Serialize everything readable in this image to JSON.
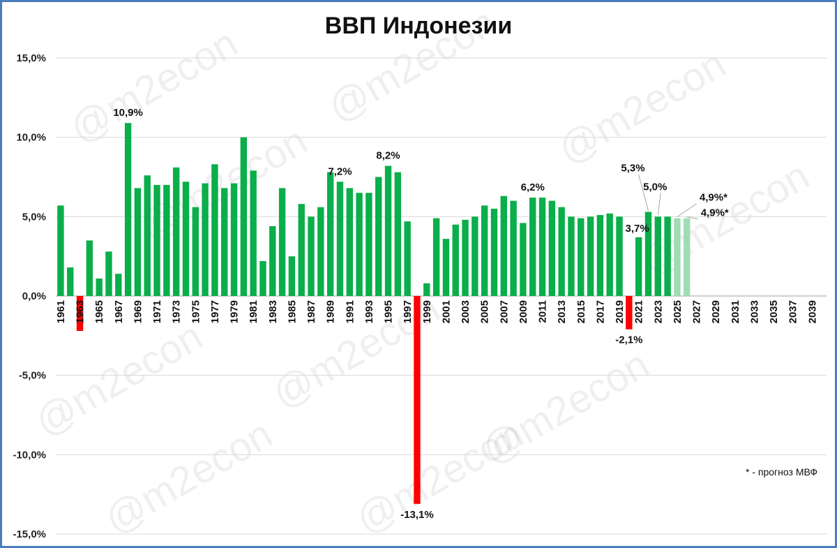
{
  "watermark": "@m2econ",
  "footnote": "* - прогноз МВФ",
  "colors": {
    "positive": "#0aae4a",
    "negative": "#ff0000",
    "forecast": "#9fdcb5",
    "grid": "#d9d9d9",
    "axis": "#bfbfbf"
  },
  "chart_data": {
    "type": "bar",
    "title": "ВВП Индонезии",
    "xlabel": "",
    "ylabel": "",
    "ylim": [
      -15,
      15
    ],
    "yticks": [
      "15,0%",
      "10,0%",
      "5,0%",
      "0,0%",
      "-5,0%",
      "-10,0%",
      "-15,0%"
    ],
    "ytick_values": [
      15,
      10,
      5,
      0,
      -5,
      -10,
      -15
    ],
    "grid": true,
    "x_start": 1961,
    "x_end": 2040,
    "xtick_labels": [
      "1961",
      "1963",
      "1965",
      "1967",
      "1969",
      "1971",
      "1973",
      "1975",
      "1977",
      "1979",
      "1981",
      "1983",
      "1985",
      "1987",
      "1989",
      "1991",
      "1993",
      "1995",
      "1997",
      "1999",
      "2001",
      "2003",
      "2005",
      "2007",
      "2009",
      "2011",
      "2013",
      "2015",
      "2017",
      "2019",
      "2021",
      "2023",
      "2025",
      "2027",
      "2029",
      "2031",
      "2033",
      "2035",
      "2037",
      "2039"
    ],
    "series": [
      {
        "years": [
          1961,
          1962,
          1963,
          1964,
          1965,
          1966,
          1967,
          1968,
          1969,
          1970,
          1971,
          1972,
          1973,
          1974,
          1975,
          1976,
          1977,
          1978,
          1979,
          1980,
          1981,
          1982,
          1983,
          1984,
          1985,
          1986,
          1987,
          1988,
          1989,
          1990,
          1991,
          1992,
          1993,
          1994,
          1995,
          1996,
          1997,
          1998,
          1999,
          2000,
          2001,
          2002,
          2003,
          2004,
          2005,
          2006,
          2007,
          2008,
          2009,
          2010,
          2011,
          2012,
          2013,
          2014,
          2015,
          2016,
          2017,
          2018,
          2019,
          2020,
          2021,
          2022,
          2023,
          2024
        ],
        "values": [
          5.7,
          1.8,
          -2.2,
          3.5,
          1.1,
          2.8,
          1.4,
          10.9,
          6.8,
          7.6,
          7.0,
          7.0,
          8.1,
          7.2,
          5.6,
          7.1,
          8.3,
          6.8,
          7.1,
          10.0,
          7.9,
          2.2,
          4.4,
          6.8,
          2.5,
          5.8,
          5.0,
          5.6,
          7.8,
          7.2,
          6.8,
          6.5,
          6.5,
          7.5,
          8.2,
          7.8,
          4.7,
          -13.1,
          0.8,
          4.9,
          3.6,
          4.5,
          4.8,
          5.0,
          5.7,
          5.5,
          6.3,
          6.0,
          4.6,
          6.2,
          6.2,
          6.0,
          5.6,
          5.0,
          4.9,
          5.0,
          5.1,
          5.2,
          5.0,
          -2.1,
          3.7,
          5.3,
          5.0,
          5.0
        ]
      },
      {
        "name": "прогноз МВФ",
        "years": [
          2025,
          2026
        ],
        "values": [
          4.9,
          4.9
        ]
      }
    ],
    "annotations": [
      {
        "year": 1968,
        "label": "10,9%"
      },
      {
        "year": 1990,
        "label": "7,2%"
      },
      {
        "year": 1995,
        "label": "8,2%"
      },
      {
        "year": 1998,
        "label": "-13,1%"
      },
      {
        "year": 2010,
        "label": "6,2%"
      },
      {
        "year": 2020,
        "label": "-2,1%"
      },
      {
        "year": 2021,
        "label": "3,7%"
      },
      {
        "year": 2022,
        "label": "5,3%"
      },
      {
        "year": 2023,
        "label": "5,0%"
      },
      {
        "year": 2025,
        "label": "4,9%*"
      },
      {
        "year": 2026,
        "label": "4,9%*"
      }
    ]
  }
}
